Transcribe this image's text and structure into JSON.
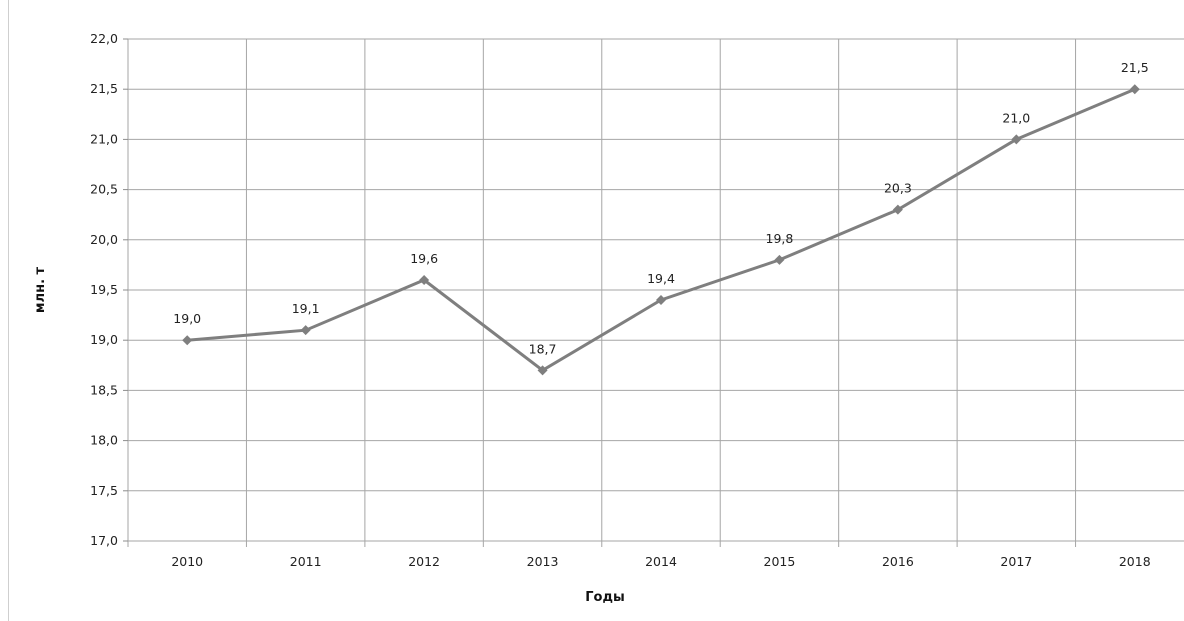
{
  "chart_data": {
    "type": "line",
    "title": "",
    "xlabel": "Годы",
    "ylabel": "млн. т",
    "categories": [
      "2010",
      "2011",
      "2012",
      "2013",
      "2014",
      "2015",
      "2016",
      "2017",
      "2018"
    ],
    "series": [
      {
        "values": [
          19.0,
          19.1,
          19.6,
          18.7,
          19.4,
          19.8,
          20.3,
          21.0,
          21.5
        ]
      }
    ],
    "data_labels": [
      "19,0",
      "19,1",
      "19,6",
      "18,7",
      "19,4",
      "19,8",
      "20,3",
      "21,0",
      "21,5"
    ],
    "yticks": [
      "17,0",
      "17,5",
      "18,0",
      "18,5",
      "19,0",
      "19,5",
      "20,0",
      "20,5",
      "21,0",
      "21,5",
      "22,0"
    ],
    "ylim": [
      17.0,
      22.0
    ],
    "ystep": 0.5,
    "grid": true,
    "legend": "none",
    "marker": "diamond",
    "colors": {
      "line": "#7f7f7f",
      "grid": "#a6a6a6",
      "axis": "#8c8c8c"
    }
  }
}
